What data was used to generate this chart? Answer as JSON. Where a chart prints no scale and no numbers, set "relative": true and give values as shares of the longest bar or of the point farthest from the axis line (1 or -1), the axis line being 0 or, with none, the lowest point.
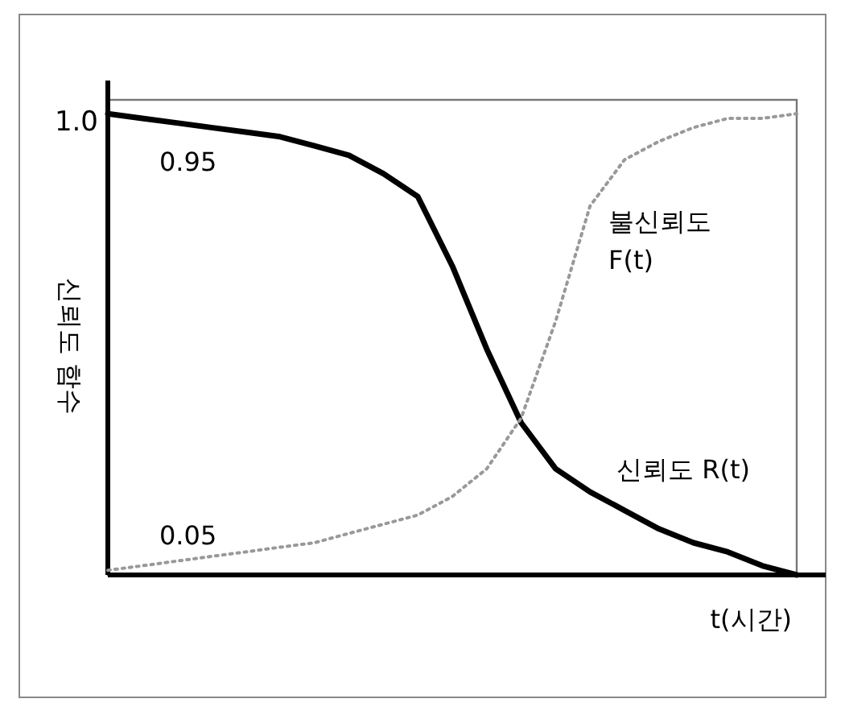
{
  "chart_data": {
    "type": "line",
    "ylabel": "신뢰도 함수",
    "xlabel": "t(시간)",
    "categories": [
      null,
      null,
      null,
      null,
      null,
      null,
      null,
      null,
      null,
      null,
      null,
      null,
      null,
      null,
      null,
      null,
      null,
      null,
      null,
      null,
      null
    ],
    "series": [
      {
        "name": "신뢰도 R(t)",
        "color": "#000000",
        "line_style": "solid",
        "values": [
          1.0,
          0.99,
          0.98,
          0.97,
          0.96,
          0.95,
          0.93,
          0.91,
          0.87,
          0.82,
          0.67,
          0.49,
          0.33,
          0.23,
          0.18,
          0.14,
          0.1,
          0.07,
          0.05,
          0.02,
          0
        ]
      },
      {
        "name": "불신뢰도 F(t)",
        "color": "#999999",
        "line_style": "dotted",
        "values": [
          0.01,
          0.02,
          0.03,
          0.04,
          0.05,
          0.06,
          0.07,
          0.09,
          0.11,
          0.13,
          0.17,
          0.23,
          0.34,
          0.55,
          0.8,
          0.9,
          0.94,
          0.97,
          0.99,
          0.99,
          1.0
        ]
      }
    ],
    "relative": true,
    "annotations": [
      "1.0",
      "0.95",
      "0.05"
    ]
  }
}
